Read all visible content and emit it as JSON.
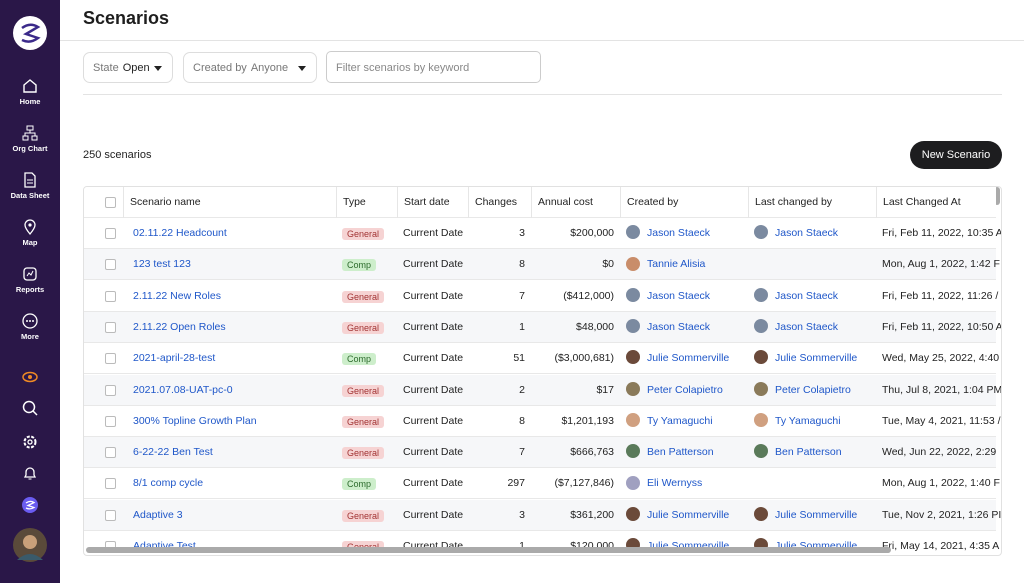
{
  "sidebar": {
    "nav": [
      "Home",
      "Org Chart",
      "Data Sheet",
      "Map",
      "Reports",
      "More"
    ]
  },
  "header": {
    "title": "Scenarios"
  },
  "filters": {
    "state": {
      "label": "State",
      "value": "Open"
    },
    "created_by": {
      "label": "Created by",
      "value": "Anyone"
    },
    "search_placeholder": "Filter scenarios by keyword"
  },
  "count": "250 scenarios",
  "button": "New Scenario",
  "table": {
    "columns": [
      "Scenario name",
      "Type",
      "Start date",
      "Changes",
      "Annual cost",
      "Created by",
      "Last changed by",
      "Last Changed At"
    ],
    "rows": [
      [
        "02.11.22 Headcount",
        "General",
        "Current Date",
        3,
        "$200,000",
        "Jason Staeck",
        "Jason Staeck",
        "Fri, Feb 11, 2022, 10:35 A"
      ],
      [
        "123 test 123",
        "Comp",
        "Current Date",
        8,
        "$0",
        "Tannie Alisia",
        null,
        "Mon, Aug 1, 2022, 1:42 F"
      ],
      [
        "2.11.22 New Roles",
        "General",
        "Current Date",
        7,
        "($412,000)",
        "Jason Staeck",
        "Jason Staeck",
        "Fri, Feb 11, 2022, 11:26 /"
      ],
      [
        "2.11.22 Open Roles",
        "General",
        "Current Date",
        1,
        "$48,000",
        "Jason Staeck",
        "Jason Staeck",
        "Fri, Feb 11, 2022, 10:50 A"
      ],
      [
        "2021-april-28-test",
        "Comp",
        "Current Date",
        51,
        "($3,000,681)",
        "Julie Sommerville",
        "Julie Sommerville",
        "Wed, May 25, 2022, 4:40"
      ],
      [
        "2021.07.08-UAT-pc-0",
        "General",
        "Current Date",
        2,
        "$17",
        "Peter Colapietro",
        "Peter Colapietro",
        "Thu, Jul 8, 2021, 1:04 PM"
      ],
      [
        "300% Topline Growth Plan",
        "General",
        "Current Date",
        8,
        "$1,201,193",
        "Ty Yamaguchi",
        "Ty Yamaguchi",
        "Tue, May 4, 2021, 11:53 /"
      ],
      [
        "6-22-22 Ben Test",
        "General",
        "Current Date",
        7,
        "$666,763",
        "Ben Patterson",
        "Ben Patterson",
        "Wed, Jun 22, 2022, 2:29"
      ],
      [
        "8/1 comp cycle",
        "Comp",
        "Current Date",
        297,
        "($7,127,846)",
        "Eli Wernyss",
        null,
        "Mon, Aug 1, 2022, 1:40 F"
      ],
      [
        "Adaptive 3",
        "General",
        "Current Date",
        3,
        "$361,200",
        "Julie Sommerville",
        "Julie Sommerville",
        "Tue, Nov 2, 2021, 1:26 PI"
      ],
      [
        "Adaptive Test",
        "General",
        "Current Date",
        1,
        "$120,000",
        "Julie Sommerville",
        "Julie Sommerville",
        "Fri, May 14, 2021, 4:35 A"
      ]
    ]
  }
}
